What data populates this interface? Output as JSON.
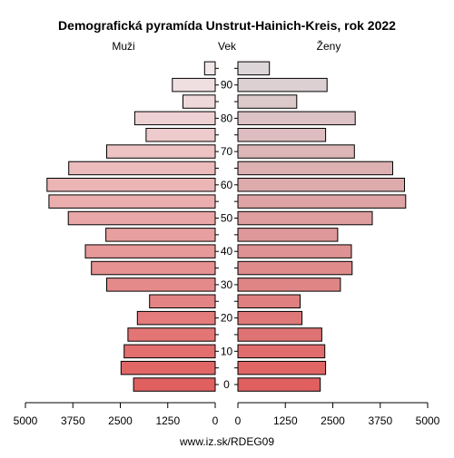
{
  "chart_data": {
    "type": "bar",
    "title": "Demografická pyramída Unstrut-Hainich-Kreis, rok 2022",
    "left_label": "Muži",
    "center_label": "Vek",
    "right_label": "Ženy",
    "footer": "www.iz.sk/RDEG09",
    "age_ticks": [
      "0",
      "10",
      "20",
      "30",
      "40",
      "50",
      "60",
      "70",
      "80",
      "90"
    ],
    "x_ticks": [
      "5000",
      "3750",
      "2500",
      "1250",
      "0",
      "0",
      "1250",
      "2500",
      "3750",
      "5000"
    ],
    "xlim": [
      0,
      5000
    ],
    "series": [
      {
        "name": "Muži",
        "values": [
          2150,
          2480,
          2400,
          2300,
          2050,
          1730,
          2860,
          3260,
          3420,
          2880,
          3870,
          4380,
          4430,
          3860,
          2860,
          1820,
          2120,
          850,
          1130,
          280
        ]
      },
      {
        "name": "Ženy",
        "values": [
          2170,
          2310,
          2290,
          2210,
          1690,
          1640,
          2700,
          3010,
          2990,
          2630,
          3540,
          4420,
          4390,
          4080,
          3070,
          2310,
          3090,
          1550,
          2350,
          830
        ]
      }
    ],
    "colors": {
      "male_young": "#e06060",
      "male_old": "#f1e6e8",
      "female_young": "#e06060",
      "female_old": "#dcd6d8"
    }
  }
}
